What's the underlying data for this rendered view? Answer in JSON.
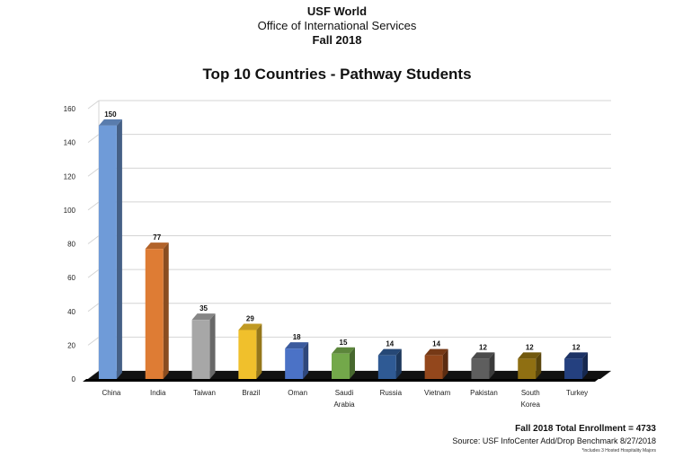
{
  "header": {
    "line1": "USF World",
    "line2": "Office of International Services",
    "line3": "Fall 2018"
  },
  "footer": {
    "total": "Fall 2018 Total Enrollment = 4733",
    "source": "Source:  USF InfoCenter Add/Drop Benchmark 8/27/2018",
    "note": "*includes 3 Hosted Hospitality Majors"
  },
  "chart_data": {
    "type": "bar",
    "title": "Top 10 Countries - Pathway Students",
    "categories": [
      "China",
      "India",
      "Taiwan",
      "Brazil",
      "Oman",
      "Saudi Arabia",
      "Russia",
      "Vietnam",
      "Pakistan",
      "South Korea",
      "Turkey"
    ],
    "category_lines": [
      [
        "China"
      ],
      [
        "India"
      ],
      [
        "Taiwan"
      ],
      [
        "Brazil"
      ],
      [
        "Oman"
      ],
      [
        "Saudi",
        "Arabia"
      ],
      [
        "Russia"
      ],
      [
        "Vietnam"
      ],
      [
        "Pakistan"
      ],
      [
        "South",
        "Korea"
      ],
      [
        "Turkey"
      ]
    ],
    "values": [
      150,
      77,
      35,
      29,
      18,
      15,
      14,
      14,
      12,
      12,
      12
    ],
    "colors": [
      "#6f9bd8",
      "#de7c34",
      "#a7a7a7",
      "#f0c02c",
      "#4b72c6",
      "#73a84a",
      "#2f5a94",
      "#93471c",
      "#5e5e5e",
      "#8f6f12",
      "#24407f"
    ],
    "ylim": [
      0,
      160
    ],
    "yticks": [
      0,
      20,
      40,
      60,
      80,
      100,
      120,
      140,
      160
    ],
    "grid": true,
    "style": "3d"
  }
}
